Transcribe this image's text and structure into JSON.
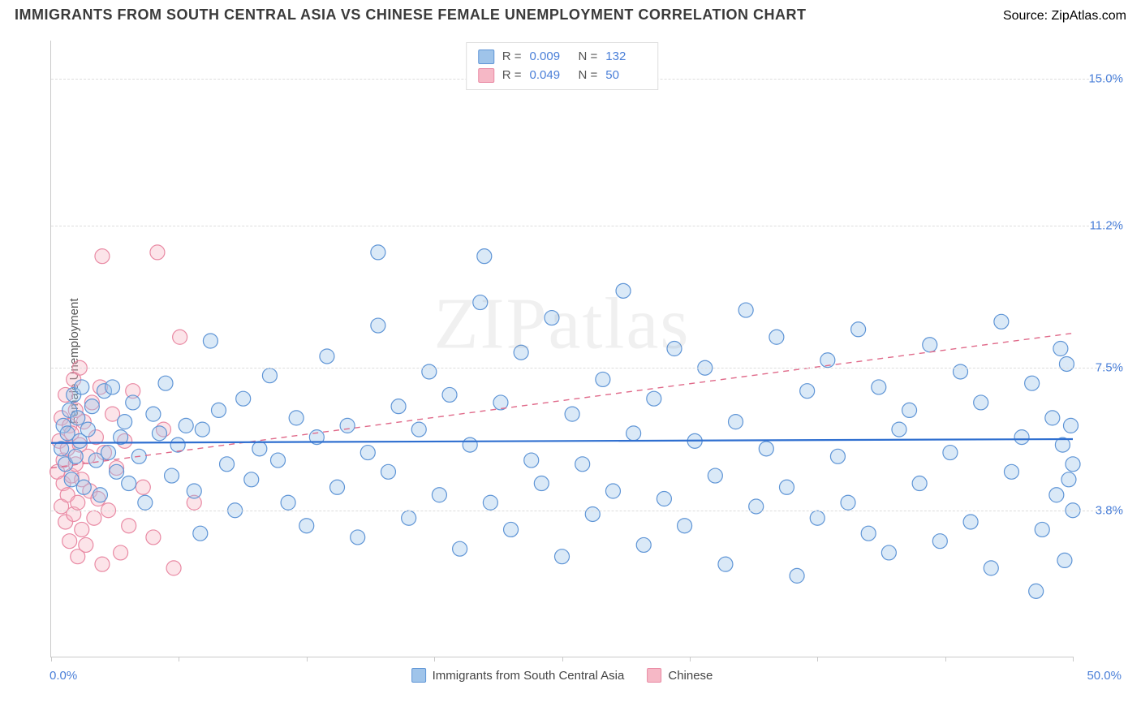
{
  "header": {
    "title": "IMMIGRANTS FROM SOUTH CENTRAL ASIA VS CHINESE FEMALE UNEMPLOYMENT CORRELATION CHART",
    "source_prefix": "Source: ",
    "source_name": "ZipAtlas.com"
  },
  "watermark": "ZIPatlas",
  "chart": {
    "type": "scatter",
    "ylabel": "Female Unemployment",
    "xlim": [
      0,
      50
    ],
    "ylim": [
      0,
      16
    ],
    "x_axis": {
      "label_min": "0.0%",
      "label_max": "50.0%",
      "tick_positions": [
        0,
        6.25,
        12.5,
        18.75,
        25,
        31.25,
        37.5,
        43.75,
        50
      ]
    },
    "y_gridlines": [
      {
        "value": 3.8,
        "label": "3.8%"
      },
      {
        "value": 7.5,
        "label": "7.5%"
      },
      {
        "value": 11.2,
        "label": "11.2%"
      },
      {
        "value": 15.0,
        "label": "15.0%"
      }
    ],
    "colors": {
      "series_a_fill": "#9fc4ea",
      "series_a_stroke": "#5f95d6",
      "series_b_fill": "#f6b8c6",
      "series_b_stroke": "#e98aa4",
      "trend_a": "#2f6fd0",
      "trend_b": "#e06a8a",
      "axis_text": "#4a7fd8",
      "grid": "#dddddd",
      "background": "#ffffff"
    },
    "marker_radius": 9,
    "legend_bottom": {
      "a": "Immigrants from South Central Asia",
      "b": "Chinese"
    },
    "top_legend": {
      "rows": [
        {
          "swatch": "a",
          "r_label": "R =",
          "r": "0.009",
          "n_label": "N =",
          "n": "132"
        },
        {
          "swatch": "b",
          "r_label": "R =",
          "r": "0.049",
          "n_label": "N =",
          "n": "50"
        }
      ]
    },
    "trend_lines": {
      "a": {
        "x1": 0,
        "y1": 5.55,
        "x2": 50,
        "y2": 5.65
      },
      "b": {
        "x1": 0,
        "y1": 4.9,
        "x2": 50,
        "y2": 8.4
      }
    },
    "series_a": [
      [
        0.5,
        5.4
      ],
      [
        0.6,
        6.0
      ],
      [
        0.7,
        5.0
      ],
      [
        0.8,
        5.8
      ],
      [
        0.9,
        6.4
      ],
      [
        1.0,
        4.6
      ],
      [
        1.1,
        6.8
      ],
      [
        1.2,
        5.2
      ],
      [
        1.3,
        6.2
      ],
      [
        1.4,
        5.6
      ],
      [
        1.5,
        7.0
      ],
      [
        1.6,
        4.4
      ],
      [
        1.8,
        5.9
      ],
      [
        2.0,
        6.5
      ],
      [
        2.2,
        5.1
      ],
      [
        2.4,
        4.2
      ],
      [
        2.6,
        6.9
      ],
      [
        2.8,
        5.3
      ],
      [
        3.0,
        7.0
      ],
      [
        3.2,
        4.8
      ],
      [
        3.4,
        5.7
      ],
      [
        3.6,
        6.1
      ],
      [
        3.8,
        4.5
      ],
      [
        4.0,
        6.6
      ],
      [
        4.3,
        5.2
      ],
      [
        4.6,
        4.0
      ],
      [
        5.0,
        6.3
      ],
      [
        5.3,
        5.8
      ],
      [
        5.6,
        7.1
      ],
      [
        5.9,
        4.7
      ],
      [
        6.2,
        5.5
      ],
      [
        6.6,
        6.0
      ],
      [
        7.0,
        4.3
      ],
      [
        7.3,
        3.2
      ],
      [
        7.4,
        5.9
      ],
      [
        7.8,
        8.2
      ],
      [
        8.2,
        6.4
      ],
      [
        8.6,
        5.0
      ],
      [
        9.0,
        3.8
      ],
      [
        9.4,
        6.7
      ],
      [
        9.8,
        4.6
      ],
      [
        10.2,
        5.4
      ],
      [
        10.7,
        7.3
      ],
      [
        11.1,
        5.1
      ],
      [
        11.6,
        4.0
      ],
      [
        12.0,
        6.2
      ],
      [
        12.5,
        3.4
      ],
      [
        13.0,
        5.7
      ],
      [
        13.5,
        7.8
      ],
      [
        14.0,
        4.4
      ],
      [
        14.5,
        6.0
      ],
      [
        15.0,
        3.1
      ],
      [
        15.5,
        5.3
      ],
      [
        16.0,
        8.6
      ],
      [
        16.0,
        10.5
      ],
      [
        16.5,
        4.8
      ],
      [
        17.0,
        6.5
      ],
      [
        17.5,
        3.6
      ],
      [
        18.0,
        5.9
      ],
      [
        18.5,
        7.4
      ],
      [
        19.0,
        4.2
      ],
      [
        19.5,
        6.8
      ],
      [
        20.0,
        2.8
      ],
      [
        20.5,
        5.5
      ],
      [
        21.0,
        9.2
      ],
      [
        21.2,
        10.4
      ],
      [
        21.5,
        4.0
      ],
      [
        22.0,
        6.6
      ],
      [
        22.5,
        3.3
      ],
      [
        23.0,
        7.9
      ],
      [
        23.5,
        5.1
      ],
      [
        24.0,
        4.5
      ],
      [
        24.5,
        8.8
      ],
      [
        25.0,
        2.6
      ],
      [
        25.5,
        6.3
      ],
      [
        26.0,
        5.0
      ],
      [
        26.5,
        3.7
      ],
      [
        27.0,
        7.2
      ],
      [
        27.5,
        4.3
      ],
      [
        28.0,
        9.5
      ],
      [
        28.5,
        5.8
      ],
      [
        29.0,
        2.9
      ],
      [
        29.5,
        6.7
      ],
      [
        30.0,
        4.1
      ],
      [
        30.5,
        8.0
      ],
      [
        31.0,
        3.4
      ],
      [
        31.5,
        5.6
      ],
      [
        32.0,
        7.5
      ],
      [
        32.5,
        4.7
      ],
      [
        33.0,
        2.4
      ],
      [
        33.5,
        6.1
      ],
      [
        34.0,
        9.0
      ],
      [
        34.5,
        3.9
      ],
      [
        35.0,
        5.4
      ],
      [
        35.5,
        8.3
      ],
      [
        36.0,
        4.4
      ],
      [
        36.5,
        2.1
      ],
      [
        37.0,
        6.9
      ],
      [
        37.5,
        3.6
      ],
      [
        38.0,
        7.7
      ],
      [
        38.5,
        5.2
      ],
      [
        39.0,
        4.0
      ],
      [
        39.5,
        8.5
      ],
      [
        40.0,
        3.2
      ],
      [
        40.5,
        7.0
      ],
      [
        41.0,
        2.7
      ],
      [
        41.5,
        5.9
      ],
      [
        42.0,
        6.4
      ],
      [
        42.5,
        4.5
      ],
      [
        43.0,
        8.1
      ],
      [
        43.5,
        3.0
      ],
      [
        44.0,
        5.3
      ],
      [
        44.5,
        7.4
      ],
      [
        45.0,
        3.5
      ],
      [
        45.5,
        6.6
      ],
      [
        46.0,
        2.3
      ],
      [
        46.5,
        8.7
      ],
      [
        47.0,
        4.8
      ],
      [
        47.5,
        5.7
      ],
      [
        48.0,
        7.1
      ],
      [
        48.2,
        1.7
      ],
      [
        48.5,
        3.3
      ],
      [
        49.0,
        6.2
      ],
      [
        49.2,
        4.2
      ],
      [
        49.4,
        8.0
      ],
      [
        49.5,
        5.5
      ],
      [
        49.6,
        2.5
      ],
      [
        49.7,
        7.6
      ],
      [
        49.8,
        4.6
      ],
      [
        49.9,
        6.0
      ],
      [
        50.0,
        3.8
      ],
      [
        50.0,
        5.0
      ]
    ],
    "series_b": [
      [
        0.3,
        4.8
      ],
      [
        0.4,
        5.6
      ],
      [
        0.5,
        3.9
      ],
      [
        0.5,
        6.2
      ],
      [
        0.6,
        4.5
      ],
      [
        0.6,
        5.1
      ],
      [
        0.7,
        6.8
      ],
      [
        0.7,
        3.5
      ],
      [
        0.8,
        5.4
      ],
      [
        0.8,
        4.2
      ],
      [
        0.9,
        6.0
      ],
      [
        0.9,
        3.0
      ],
      [
        1.0,
        5.8
      ],
      [
        1.0,
        4.7
      ],
      [
        1.1,
        7.2
      ],
      [
        1.1,
        3.7
      ],
      [
        1.2,
        5.0
      ],
      [
        1.2,
        6.4
      ],
      [
        1.3,
        4.0
      ],
      [
        1.3,
        2.6
      ],
      [
        1.4,
        5.5
      ],
      [
        1.4,
        7.5
      ],
      [
        1.5,
        3.3
      ],
      [
        1.5,
        4.6
      ],
      [
        1.6,
        6.1
      ],
      [
        1.7,
        2.9
      ],
      [
        1.8,
        5.2
      ],
      [
        1.9,
        4.3
      ],
      [
        2.0,
        6.6
      ],
      [
        2.1,
        3.6
      ],
      [
        2.2,
        5.7
      ],
      [
        2.3,
        4.1
      ],
      [
        2.4,
        7.0
      ],
      [
        2.5,
        2.4
      ],
      [
        2.6,
        5.3
      ],
      [
        2.5,
        10.4
      ],
      [
        2.8,
        3.8
      ],
      [
        3.0,
        6.3
      ],
      [
        3.2,
        4.9
      ],
      [
        3.4,
        2.7
      ],
      [
        3.6,
        5.6
      ],
      [
        3.8,
        3.4
      ],
      [
        4.0,
        6.9
      ],
      [
        4.5,
        4.4
      ],
      [
        5.0,
        3.1
      ],
      [
        5.2,
        10.5
      ],
      [
        5.5,
        5.9
      ],
      [
        6.0,
        2.3
      ],
      [
        6.3,
        8.3
      ],
      [
        7.0,
        4.0
      ]
    ]
  }
}
